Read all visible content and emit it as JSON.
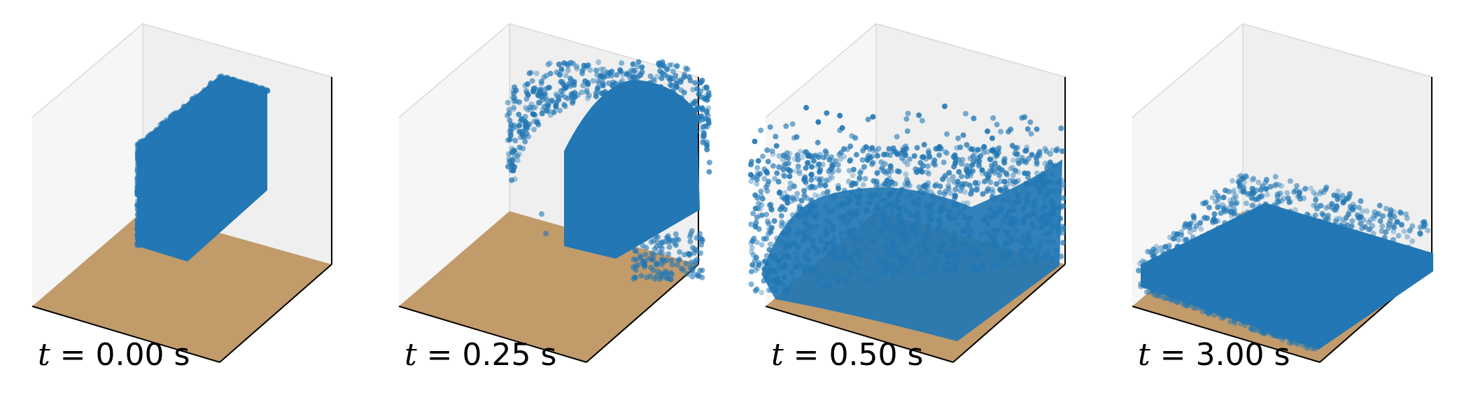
{
  "colors": {
    "particle": "#2277b4",
    "floor": "#c29b6b",
    "wall_left": "#f6f6f6",
    "wall_back": "#efefef",
    "axis": "#000000",
    "wall_edge": "#d9d9d9"
  },
  "panels": [
    {
      "t_var": "t",
      "eq": " = ",
      "value": "0.00",
      "unit": " s",
      "state": "initial-column"
    },
    {
      "t_var": "t",
      "eq": " = ",
      "value": "0.25",
      "unit": " s",
      "state": "collapsing"
    },
    {
      "t_var": "t",
      "eq": " = ",
      "value": "0.50",
      "unit": " s",
      "state": "splashing"
    },
    {
      "t_var": "t",
      "eq": " = ",
      "value": "3.00",
      "unit": " s",
      "state": "settled"
    }
  ]
}
